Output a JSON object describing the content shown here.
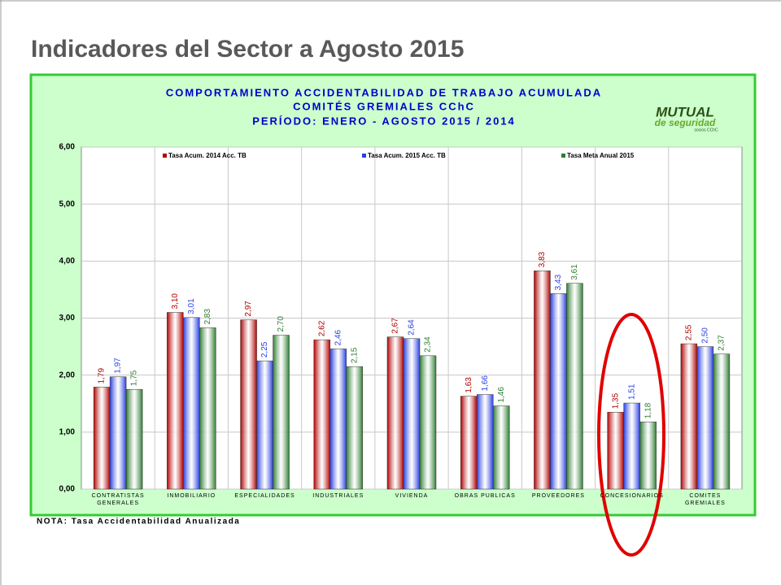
{
  "page_title": "Indicadores del Sector a Agosto 2015",
  "logo": {
    "name": "MUTUAL",
    "tagline": "de seguridad",
    "sub": "socios CChC"
  },
  "note": "NOTA:  Tasa Accidentabilidad Anualizada",
  "chart_data": {
    "type": "bar",
    "title": [
      "COMPORTAMIENTO ACCIDENTABILIDAD DE TRABAJO ACUMULADA",
      "COMITÉS GREMIALES CChC",
      "PERÍODO: ENERO  -  AGOSTO  2015 / 2014"
    ],
    "categories": [
      "CONTRATISTAS GENERALES",
      "INMOBILIARIO",
      "ESPECIALIDADES",
      "INDUSTRIALES",
      "VIVIENDA",
      "OBRAS PUBLICAS",
      "PROVEEDORES",
      "CONCESIONARIOS",
      "COMITES GREMIALES"
    ],
    "series": [
      {
        "name": "Tasa Acum. 2014 Acc. TB",
        "color": "#b00000",
        "values": [
          1.79,
          3.1,
          2.97,
          2.62,
          2.67,
          1.63,
          3.83,
          1.35,
          2.55
        ],
        "value_labels": [
          "1,79",
          "3,10",
          "2,97",
          "2,62",
          "2,67",
          "1,63",
          "3,83",
          "1,35",
          "2,55"
        ]
      },
      {
        "name": "Tasa Acum. 2015 Acc. TB",
        "color": "#2a40e0",
        "values": [
          1.97,
          3.01,
          2.25,
          2.46,
          2.64,
          1.66,
          3.43,
          1.51,
          2.5
        ],
        "value_labels": [
          "1,97",
          "3,01",
          "2,25",
          "2,46",
          "2,64",
          "1,66",
          "3,43",
          "1,51",
          "2,50"
        ]
      },
      {
        "name": "Tasa Meta Anual 2015",
        "color": "#2e7d32",
        "values": [
          1.75,
          2.83,
          2.7,
          2.15,
          2.34,
          1.46,
          3.61,
          1.18,
          2.37
        ],
        "value_labels": [
          "1,75",
          "2,83",
          "2,70",
          "2,15",
          "2,34",
          "1,46",
          "3,61",
          "1,18",
          "2,37"
        ]
      }
    ],
    "ylim": [
      0,
      6
    ],
    "yticks": [
      {
        "value": 0,
        "label": "0,00"
      },
      {
        "value": 1,
        "label": "1,00"
      },
      {
        "value": 2,
        "label": "2,00"
      },
      {
        "value": 3,
        "label": "3,00"
      },
      {
        "value": 4,
        "label": "4,00"
      },
      {
        "value": 5,
        "label": "5,00"
      },
      {
        "value": 6,
        "label": "6,00"
      }
    ],
    "grid": true
  }
}
